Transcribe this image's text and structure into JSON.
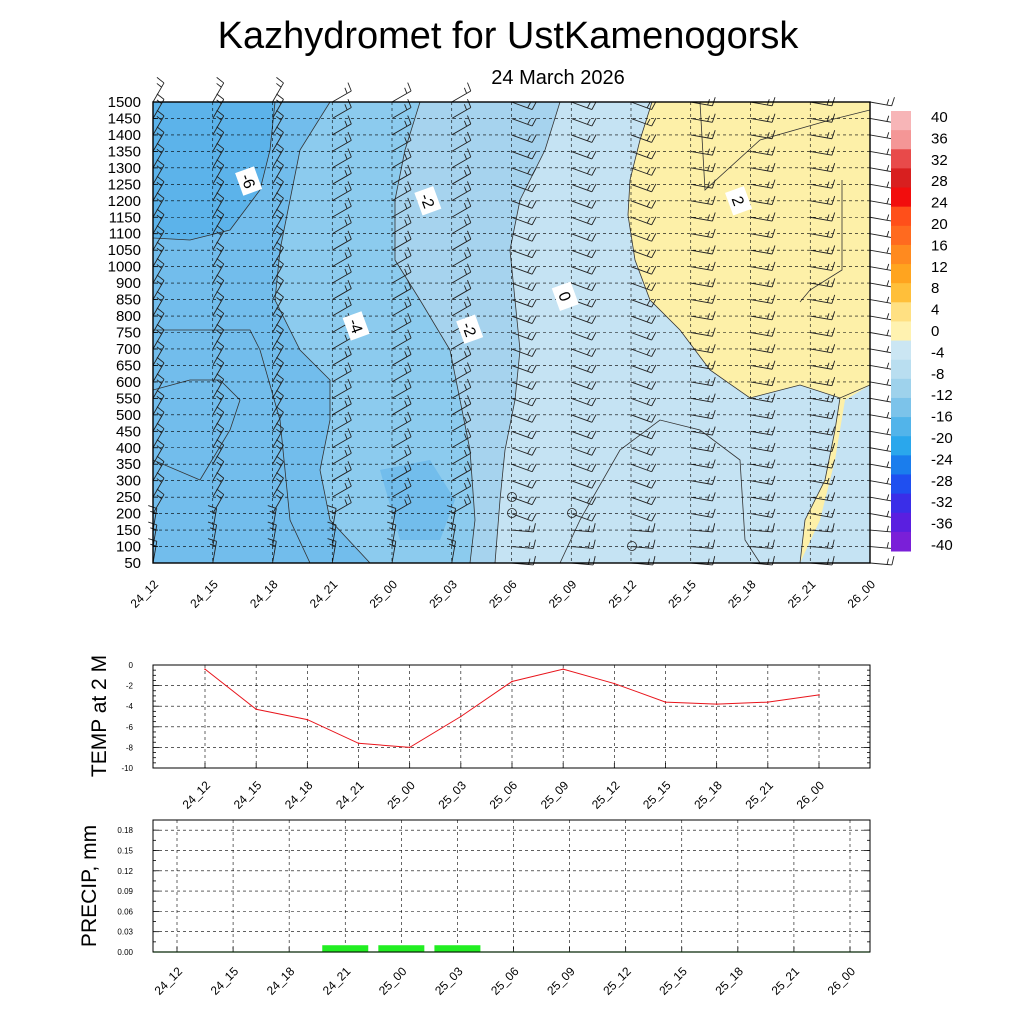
{
  "header": {
    "title": "Kazhydromet  for UstKamenogorsk",
    "subtitle": "24 March 2026"
  },
  "time_labels": [
    "24_12",
    "24_15",
    "24_18",
    "24_21",
    "25_00",
    "25_03",
    "25_06",
    "25_09",
    "25_12",
    "25_15",
    "25_18",
    "25_21",
    "26_00"
  ],
  "chart_data": [
    {
      "type": "heatmap",
      "name": "vertical-temperature-wind-cross-section",
      "title": "Kazhydromet  for UstKamenogorsk",
      "subtitle": "24 March 2026",
      "x": [
        "24_12",
        "24_15",
        "24_18",
        "24_21",
        "25_00",
        "25_03",
        "25_06",
        "25_09",
        "25_12",
        "25_15",
        "25_18",
        "25_21",
        "26_00"
      ],
      "y_levels_m": [
        50,
        100,
        150,
        200,
        250,
        300,
        350,
        400,
        450,
        500,
        550,
        600,
        650,
        700,
        750,
        800,
        850,
        900,
        1000,
        1050,
        1100,
        1150,
        1200,
        1250,
        1300,
        1350,
        1400,
        1450,
        1500
      ],
      "colorbar": {
        "ticks": [
          "40",
          "36",
          "32",
          "28",
          "24",
          "20",
          "16",
          "12",
          "8",
          "4",
          "0",
          "-4",
          "-8",
          "-12",
          "-16",
          "-20",
          "-24",
          "-28",
          "-32",
          "-36",
          "-40"
        ],
        "colors": [
          "#f7b5b7",
          "#f49696",
          "#e84a4a",
          "#d81f1f",
          "#f20d0d",
          "#ff4f1a",
          "#ff6a1f",
          "#ff8a1f",
          "#ffa41f",
          "#ffbf3a",
          "#ffe082",
          "#fff2b0",
          "#cbe6f3",
          "#b9def0",
          "#9ed2ec",
          "#7cc3ea",
          "#52b4ea",
          "#2aa7ec",
          "#1a7ded",
          "#1f4ff0",
          "#3a2ee8",
          "#5a1fe0",
          "#7a1fd8"
        ]
      },
      "contour_labels": [
        {
          "text": "-6",
          "t": 1.6,
          "z": 1260
        },
        {
          "text": "-2",
          "t": 4.6,
          "z": 1200
        },
        {
          "text": "-4",
          "t": 3.4,
          "z": 770
        },
        {
          "text": "-2",
          "t": 5.3,
          "z": 760
        },
        {
          "text": "0",
          "t": 6.9,
          "z": 860
        },
        {
          "text": "2",
          "t": 9.8,
          "z": 1200
        }
      ]
    },
    {
      "type": "line",
      "name": "temp-2m",
      "ylabel": "TEMP at 2 M",
      "ylim": [
        -10,
        0
      ],
      "y_ticks": [
        "0",
        "-2",
        "-4",
        "-6",
        "-8",
        "-10"
      ],
      "categories": [
        "24_12",
        "24_15",
        "24_18",
        "24_21",
        "25_00",
        "25_03",
        "25_06",
        "25_09",
        "25_12",
        "25_15",
        "25_18",
        "25_21",
        "26_00"
      ],
      "series": [
        {
          "name": "TEMP at 2 M",
          "color": "#e8141b",
          "values": [
            -0.4,
            -4.3,
            -5.3,
            -7.6,
            -8.0,
            -5.0,
            -1.6,
            -0.4,
            -1.8,
            -3.6,
            -3.8,
            -3.6,
            -2.9
          ]
        }
      ]
    },
    {
      "type": "bar",
      "name": "precip",
      "ylabel": "PRECIP, mm",
      "ylim": [
        0,
        0.195
      ],
      "y_ticks": [
        "0.18",
        "0.15",
        "0.12",
        "0.09",
        "0.06",
        "0.03",
        "0.00"
      ],
      "categories": [
        "24_12",
        "24_15",
        "24_18",
        "24_21",
        "25_00",
        "25_03",
        "25_06",
        "25_09",
        "25_12",
        "25_15",
        "25_18",
        "25_21",
        "26_00"
      ],
      "values": [
        0,
        0,
        0,
        0.01,
        0.01,
        0.01,
        0,
        0,
        0,
        0,
        0,
        0,
        0
      ],
      "bar_color": "#22ee22"
    }
  ]
}
